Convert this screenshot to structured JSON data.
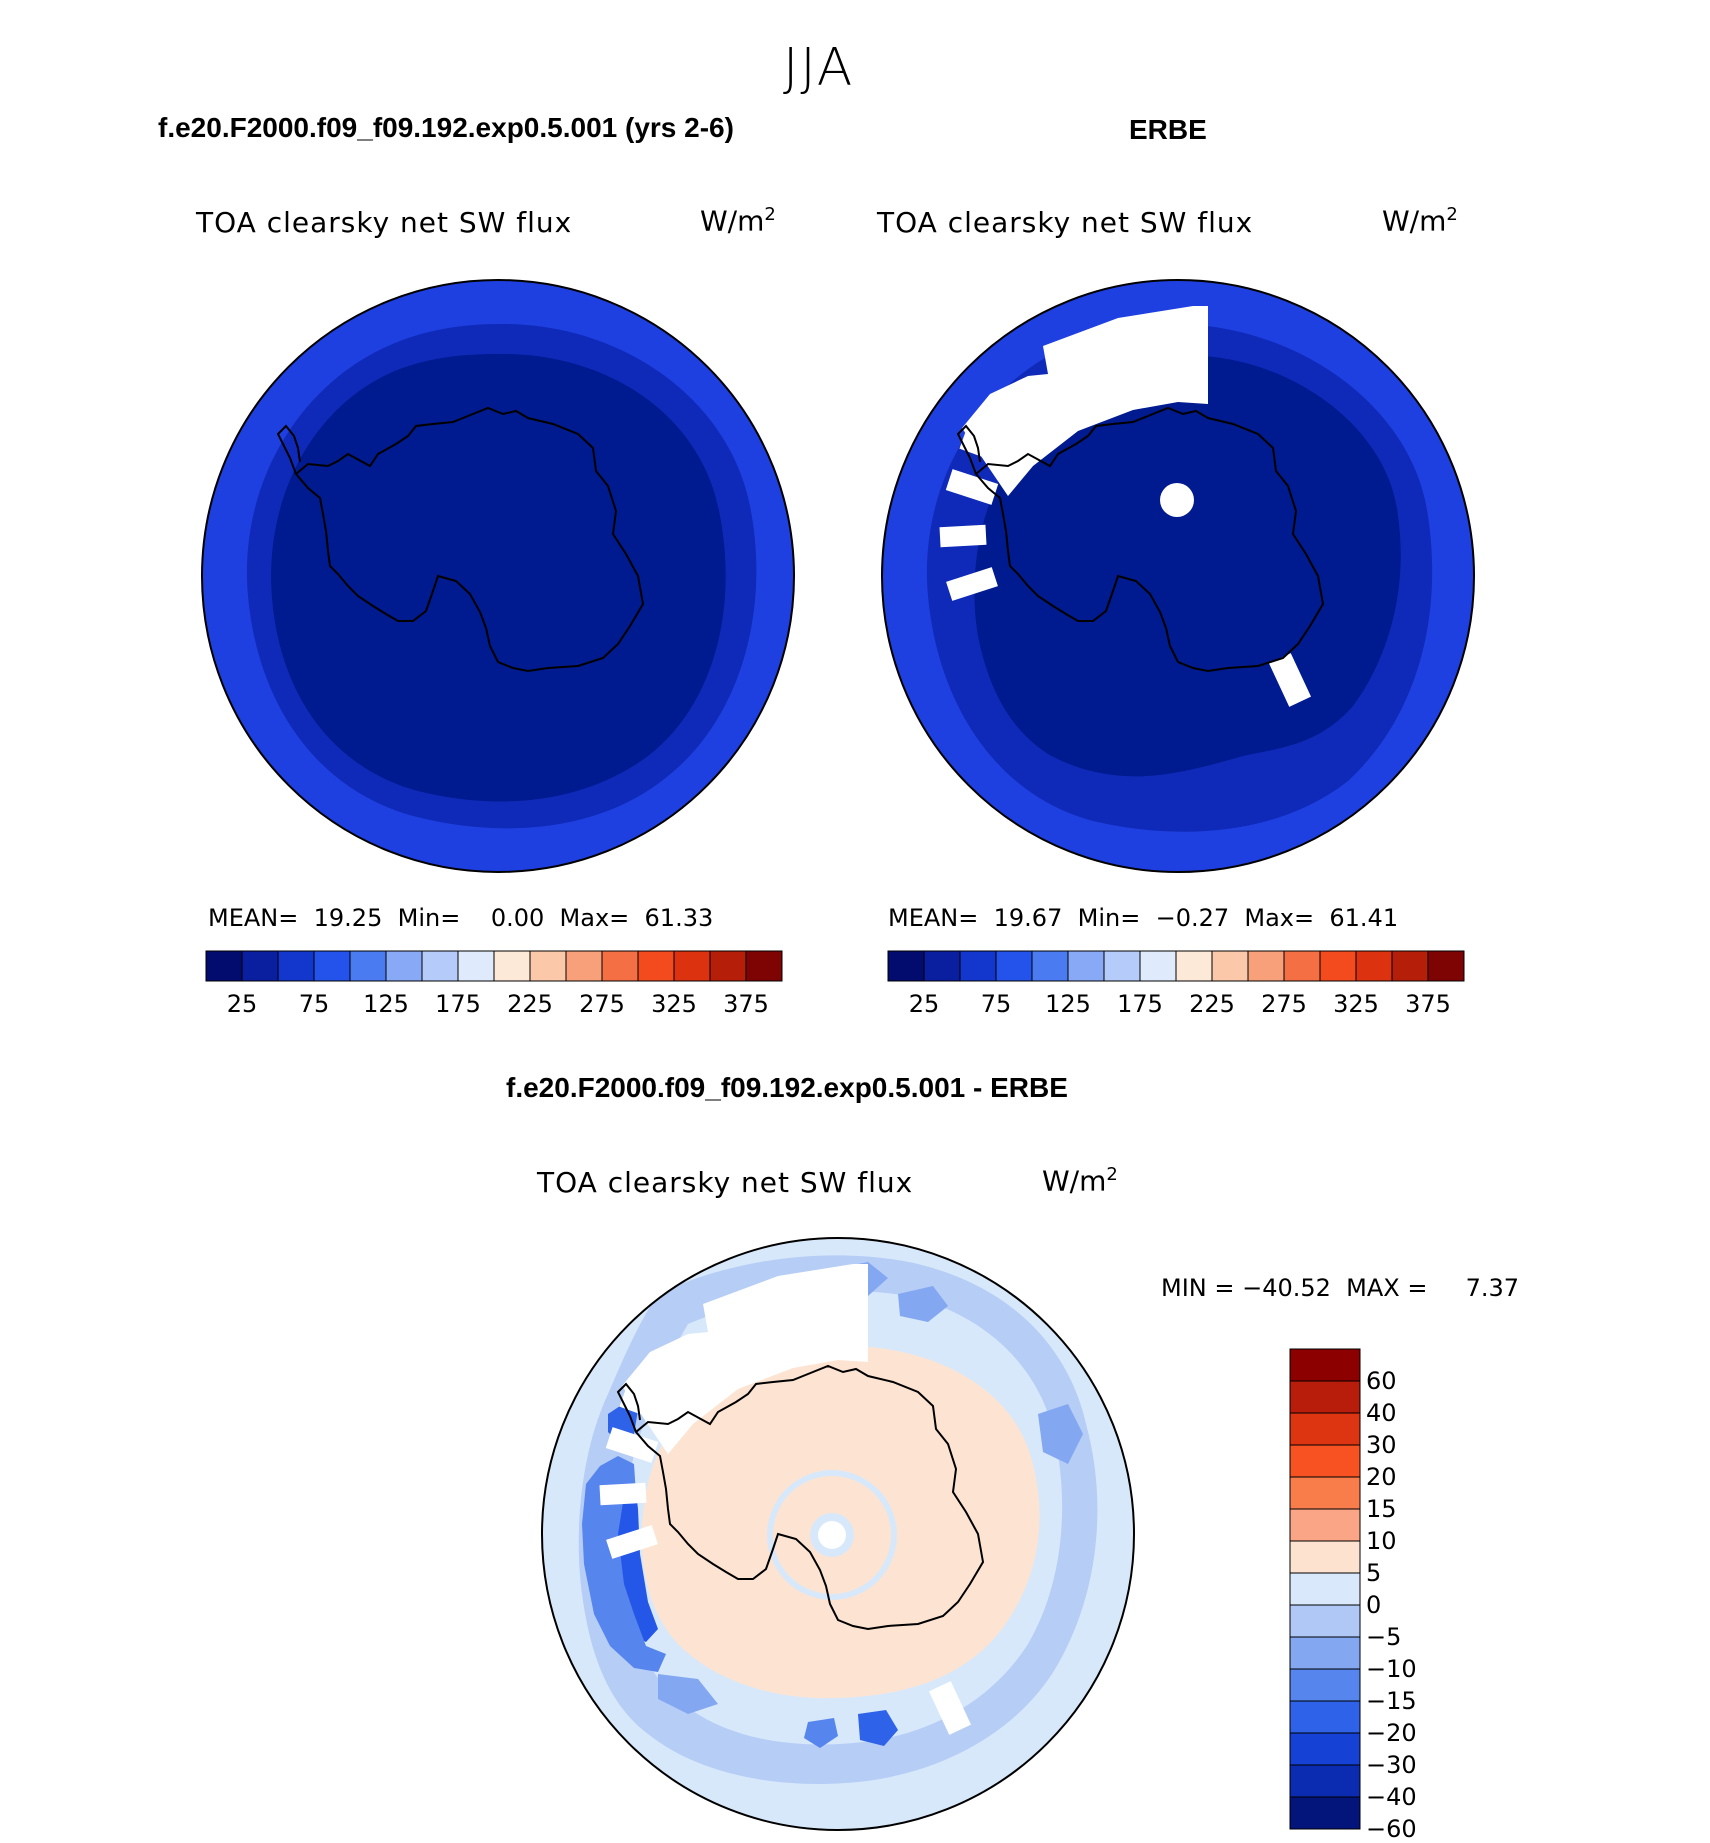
{
  "figure": {
    "season": "JJA",
    "panels": {
      "model": {
        "title": "f.e20.F2000.f09_f09.192.exp0.5.001 (yrs 2-6)",
        "variable": "TOA clearsky net SW flux",
        "units_base": "W/m",
        "units_exp": "2",
        "mean_label": "MEAN=",
        "mean": "19.25",
        "min_label": "Min=",
        "min": "0.00",
        "max_label": "Max=",
        "max": "61.33"
      },
      "obs": {
        "title": "ERBE",
        "variable": "TOA clearsky net SW flux",
        "units_base": "W/m",
        "units_exp": "2",
        "mean_label": "MEAN=",
        "mean": "19.67",
        "min_label": "Min=",
        "min": "−0.27",
        "max_label": "Max=",
        "max": "61.41"
      },
      "diff": {
        "title": "f.e20.F2000.f09_f09.192.exp0.5.001 - ERBE",
        "variable": "TOA clearsky net SW flux",
        "units_base": "W/m",
        "units_exp": "2",
        "minmax_text": "MIN = −40.52  MAX =     7.37"
      }
    }
  },
  "chart_data": [
    {
      "type": "heatmap",
      "subtype": "polar-stereographic contour map (Southern Hemisphere)",
      "title": "f.e20.F2000.f09_f09.192.exp0.5.001 (yrs 2-6)",
      "variable": "TOA clearsky net SW flux",
      "units": "W/m2",
      "stats": {
        "mean": 19.25,
        "min": 0.0,
        "max": 61.33
      },
      "zones": [
        {
          "region": "outer ring",
          "value_bin": "50-75",
          "color": "#1f40e0"
        },
        {
          "region": "middle ring",
          "value_bin": "25-50",
          "color": "#0f2ab8"
        },
        {
          "region": "interior / Antarctica",
          "value_bin": "0-25",
          "color": "#001a8f"
        }
      ]
    },
    {
      "type": "heatmap",
      "subtype": "polar-stereographic contour map (Southern Hemisphere)",
      "title": "ERBE",
      "variable": "TOA clearsky net SW flux",
      "units": "W/m2",
      "stats": {
        "mean": 19.67,
        "min": -0.27,
        "max": 61.41
      },
      "missing_data": "white patches",
      "zones": [
        {
          "region": "outer ring",
          "value_bin": "50-75",
          "color": "#1f40e0"
        },
        {
          "region": "middle ring",
          "value_bin": "25-50",
          "color": "#0f2ab8"
        },
        {
          "region": "interior / Antarctica",
          "value_bin": "0-25",
          "color": "#001a8f"
        }
      ]
    },
    {
      "type": "heatmap",
      "subtype": "polar-stereographic difference map",
      "title": "f.e20.F2000.f09_f09.192.exp0.5.001 - ERBE",
      "variable": "TOA clearsky net SW flux",
      "units": "W/m2",
      "stats": {
        "min": -40.52,
        "max": 7.37
      },
      "zones": [
        {
          "region": "Antarctic interior",
          "value_bin": "0 to 5",
          "color": "#fde4d2"
        },
        {
          "region": "Southern Ocean",
          "value_bin": "-5 to 0",
          "color": "#d7e8fa"
        },
        {
          "region": "sea-ice edge band",
          "value_bin": "-10 to -5",
          "color": "#b6cdf6"
        },
        {
          "region": "coastal Weddell / Bellingshausen",
          "value_bin": "-40 to -20",
          "color": "#2457e8"
        }
      ]
    }
  ],
  "colorbars": {
    "absolute": {
      "colors": [
        "#020b6e",
        "#0a1ea0",
        "#1336cc",
        "#2453ec",
        "#4a7bf1",
        "#87a9f6",
        "#b5cbf9",
        "#dfebfd",
        "#fde9d7",
        "#fbc8aa",
        "#f7a07a",
        "#f56f44",
        "#f34a1e",
        "#dc3210",
        "#b51f0a",
        "#7e0404"
      ],
      "labels": [
        "25",
        "75",
        "125",
        "175",
        "225",
        "275",
        "325",
        "375"
      ]
    },
    "difference": {
      "colors_top_to_bottom": [
        "#8c0000",
        "#b81c0a",
        "#dd3512",
        "#f85222",
        "#f97c4b",
        "#faa585",
        "#fde2cf",
        "#d9e9fb",
        "#b0c8f6",
        "#84a7f1",
        "#5685ee",
        "#2e62e8",
        "#1542d4",
        "#0b2cb0",
        "#03157a"
      ],
      "labels_top_to_bottom": [
        "60",
        "40",
        "30",
        "20",
        "15",
        "10",
        "5",
        "0",
        "−5",
        "−10",
        "−15",
        "−20",
        "−30",
        "−40",
        "−60"
      ]
    }
  }
}
